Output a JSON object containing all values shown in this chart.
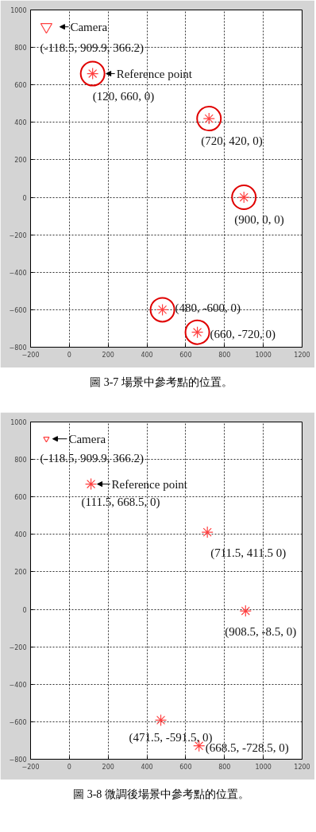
{
  "chart_data": [
    {
      "type": "scatter",
      "xlim": [
        -200,
        1200
      ],
      "ylim": [
        -800,
        1000
      ],
      "xticks": [
        -200,
        0,
        200,
        400,
        600,
        800,
        1000,
        1200
      ],
      "yticks": [
        -800,
        -600,
        -400,
        -200,
        0,
        200,
        400,
        600,
        800,
        1000
      ],
      "grid": true,
      "series": [
        {
          "marker": "triangle",
          "color": "#ff4040",
          "x": [
            -118.5
          ],
          "values": [
            909.9
          ]
        },
        {
          "marker": "cross",
          "color": "#ff4040",
          "x": [
            120,
            720,
            900,
            480,
            660
          ],
          "values": [
            660,
            420,
            0,
            -600,
            -720
          ]
        },
        {
          "marker": "circle",
          "color": "#e00000",
          "x": [
            120,
            720,
            900,
            480,
            660
          ],
          "values": [
            660,
            420,
            0,
            -600,
            -720
          ]
        }
      ],
      "annotations": [
        {
          "text": "Camera",
          "x": -118.5,
          "y": 909.9
        },
        {
          "text": "(-118.5, 909.9, 366.2)",
          "x": -118.5,
          "y": 909.9
        },
        {
          "text": "Reference point",
          "x": 120,
          "y": 660
        },
        {
          "text": "(120, 660, 0)",
          "x": 120,
          "y": 660
        },
        {
          "text": "(720, 420, 0)",
          "x": 720,
          "y": 420
        },
        {
          "text": "(900, 0, 0)",
          "x": 900,
          "y": 0
        },
        {
          "text": "(480, -600, 0)",
          "x": 480,
          "y": -600
        },
        {
          "text": "(660, -720, 0)",
          "x": 660,
          "y": -720
        },
        "圖 3-7 場景中參考點的位置。"
      ]
    },
    {
      "type": "scatter",
      "xlim": [
        -200,
        1200
      ],
      "ylim": [
        -800,
        1000
      ],
      "xticks": [
        -200,
        0,
        200,
        400,
        600,
        800,
        1000,
        1200
      ],
      "yticks": [
        -800,
        -600,
        -400,
        -200,
        0,
        200,
        400,
        600,
        800,
        1000
      ],
      "grid": true,
      "series": [
        {
          "marker": "triangle",
          "color": "#ff4040",
          "x": [
            -118.5
          ],
          "values": [
            909.9
          ]
        },
        {
          "marker": "cross",
          "color": "#ff4040",
          "x": [
            111.5,
            711.5,
            908.5,
            471.5,
            668.5
          ],
          "values": [
            668.5,
            411.5,
            -8.5,
            -591.5,
            -728.5
          ]
        }
      ],
      "annotations": [
        {
          "text": "Camera",
          "x": -118.5,
          "y": 909.9
        },
        {
          "text": "(-118.5, 909.9, 366.2)",
          "x": -118.5,
          "y": 909.9
        },
        {
          "text": "Reference point",
          "x": 111.5,
          "y": 668.5
        },
        {
          "text": "(111.5, 668.5, 0)",
          "x": 111.5,
          "y": 668.5
        },
        {
          "text": "(711.5, 411.5 0)",
          "x": 711.5,
          "y": 411.5
        },
        {
          "text": "(908.5, -8.5, 0)",
          "x": 908.5,
          "y": -8.5
        },
        {
          "text": "(471.5, -591.5, 0)",
          "x": 471.5,
          "y": -591.5
        },
        {
          "text": "(668.5, -728.5, 0)",
          "x": 668.5,
          "y": -728.5
        },
        "圖 3-8 微調後場景中參考點的位置。"
      ]
    }
  ]
}
